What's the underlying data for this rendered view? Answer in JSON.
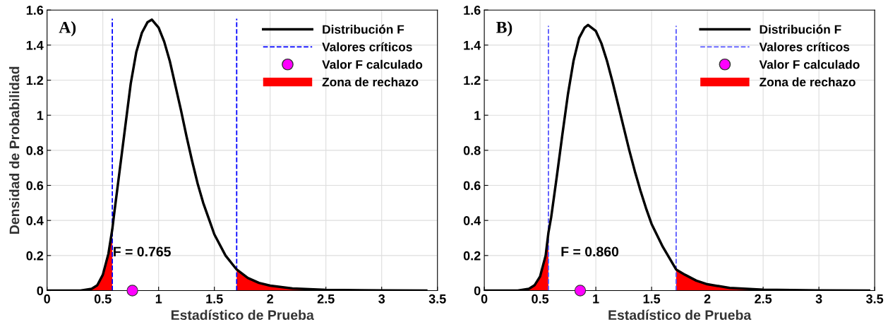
{
  "chart_data": [
    {
      "type": "line",
      "xlabel": "Estadístico de Prueba",
      "ylabel": "Densidad de Probabilidad",
      "xlim": [
        0,
        3.5
      ],
      "ylim": [
        0,
        1.6
      ],
      "xticks": [
        0,
        0.5,
        1,
        1.5,
        2,
        2.5,
        3,
        3.5
      ],
      "yticks": [
        0,
        0.2,
        0.4,
        0.6,
        0.8,
        1,
        1.2,
        1.4,
        1.6
      ],
      "grid": true,
      "legend": "top right",
      "annotations": [
        "A)",
        {
          "text": "F = 0.765",
          "x": 0.765,
          "y": 0
        }
      ],
      "series": [
        {
          "name": "Valores críticos",
          "type": "line",
          "color": "#0000ff",
          "marker": "none",
          "line_style": "dashed",
          "x": [
            0.585,
            0.585,
            null,
            1.7,
            1.7
          ],
          "values": [
            0,
            1.55,
            null,
            0,
            1.55
          ]
        },
        {
          "name": "Distribución F",
          "type": "line",
          "color": "#000000",
          "marker": "none",
          "line_style": "solid",
          "x": [
            0,
            0.3,
            0.4,
            0.45,
            0.5,
            0.55,
            0.585,
            0.6,
            0.65,
            0.7,
            0.75,
            0.8,
            0.85,
            0.9,
            0.94,
            1.0,
            1.05,
            1.1,
            1.15,
            1.2,
            1.25,
            1.3,
            1.35,
            1.4,
            1.45,
            1.5,
            1.6,
            1.7,
            1.8,
            1.9,
            2.0,
            2.2,
            2.5,
            3.0,
            3.4
          ],
          "values": [
            0,
            0,
            0.01,
            0.03,
            0.09,
            0.21,
            0.35,
            0.43,
            0.68,
            0.93,
            1.18,
            1.36,
            1.47,
            1.53,
            1.545,
            1.5,
            1.42,
            1.31,
            1.17,
            1.03,
            0.88,
            0.74,
            0.61,
            0.5,
            0.41,
            0.32,
            0.2,
            0.12,
            0.072,
            0.044,
            0.028,
            0.012,
            0.004,
            0.001,
            0
          ]
        },
        {
          "name": "Valor F calculado",
          "type": "scatter",
          "color": "#ff00ff",
          "marker": "circle",
          "x": [
            0.765
          ],
          "values": [
            0
          ]
        },
        {
          "name": "Zona de rechazo",
          "type": "area",
          "color": "#ff0000",
          "x": [
            0.3,
            0.4,
            0.45,
            0.5,
            0.55,
            0.585,
            0.6,
            1.7,
            1.8,
            1.9,
            2.0,
            2.2,
            2.5,
            3.0,
            3.4
          ],
          "values": [
            0,
            0.01,
            0.03,
            0.09,
            0.21,
            0.35,
            null,
            0.12,
            0.072,
            0.044,
            0.028,
            0.012,
            0.004,
            0.001,
            0
          ]
        }
      ]
    },
    {
      "type": "line",
      "xlabel": "Estadístico de Prueba",
      "xlim": [
        0,
        3.5
      ],
      "ylim": [
        0,
        1.6
      ],
      "xticks": [
        0,
        0.5,
        1,
        1.5,
        2,
        2.5,
        3,
        3.5
      ],
      "yticks": [
        0,
        0.2,
        0.4,
        0.6,
        0.8,
        1,
        1.2,
        1.4,
        1.6
      ],
      "grid": true,
      "legend": "top right",
      "annotations": [
        "B)",
        {
          "text": "F = 0.860",
          "x": 0.86,
          "y": 0
        }
      ],
      "series": [
        {
          "name": "Valores críticos",
          "type": "line",
          "color": "#5555ff",
          "marker": "none",
          "line_style": "dashed",
          "x": [
            0.575,
            0.575,
            null,
            1.72,
            1.72
          ],
          "values": [
            0,
            1.51,
            null,
            0,
            1.51
          ]
        },
        {
          "name": "Distribución F",
          "type": "line",
          "color": "#000000",
          "marker": "none",
          "line_style": "solid",
          "x": [
            0,
            0.3,
            0.4,
            0.45,
            0.5,
            0.55,
            0.575,
            0.6,
            0.65,
            0.7,
            0.75,
            0.8,
            0.85,
            0.9,
            0.93,
            1.0,
            1.05,
            1.1,
            1.15,
            1.2,
            1.25,
            1.3,
            1.35,
            1.4,
            1.45,
            1.5,
            1.6,
            1.72,
            1.8,
            1.9,
            2.0,
            2.2,
            2.5,
            3.0,
            3.45
          ],
          "values": [
            0,
            0,
            0.01,
            0.03,
            0.08,
            0.2,
            0.33,
            0.42,
            0.65,
            0.89,
            1.12,
            1.31,
            1.44,
            1.5,
            1.515,
            1.48,
            1.41,
            1.31,
            1.19,
            1.06,
            0.93,
            0.8,
            0.68,
            0.57,
            0.47,
            0.38,
            0.25,
            0.12,
            0.09,
            0.057,
            0.036,
            0.015,
            0.005,
            0.001,
            0
          ]
        },
        {
          "name": "Valor F calculado",
          "type": "scatter",
          "color": "#ff00ff",
          "marker": "circle",
          "x": [
            0.86
          ],
          "values": [
            0
          ]
        },
        {
          "name": "Zona de rechazo",
          "type": "area",
          "color": "#ff0000",
          "x": [
            0.3,
            0.4,
            0.45,
            0.5,
            0.55,
            0.575,
            0.6,
            1.72,
            1.8,
            1.9,
            2.0,
            2.2,
            2.5,
            3.0,
            3.45
          ],
          "values": [
            0,
            0.01,
            0.03,
            0.08,
            0.2,
            0.33,
            null,
            0.12,
            0.09,
            0.057,
            0.036,
            0.015,
            0.005,
            0.001,
            0
          ]
        }
      ]
    }
  ]
}
